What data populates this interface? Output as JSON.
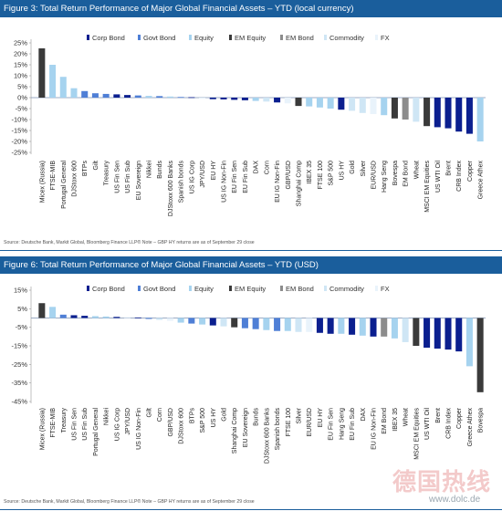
{
  "colors": {
    "title_bar": "#1a5e9c",
    "Corp Bond": "#0b1f8f",
    "Govt Bond": "#4f7fd6",
    "Equity": "#a6d3ef",
    "EM Equity": "#3a3a3a",
    "EM Bond": "#8c8c8c",
    "Commodity": "#cfe6f5",
    "FX": "#e9f3fb"
  },
  "chart_data": [
    {
      "type": "bar",
      "title": "Figure 3: Total Return Performance of Major Global Financial Assets – YTD (local currency)",
      "source": "Source: Deutsche Bank, Markit Global, Bloomberg Finance LLP® Note – GBP HY returns are as of September 29 close",
      "yticks": [
        "25%",
        "20%",
        "15%",
        "10%",
        "5%",
        "0%",
        "-5%",
        "-10%",
        "-15%",
        "-20%",
        "-25%"
      ],
      "ylim": [
        -25,
        25
      ],
      "legend_labels": [
        "Corp Bond",
        "Govt Bond",
        "Equity",
        "EM Equity",
        "EM Bond",
        "Commodity",
        "FX"
      ],
      "legend_position": "top",
      "grid": false,
      "categories": [
        "Micex (Russia)",
        "FTSE-MIB",
        "Portugal General",
        "DJStoxx 600",
        "BTPs",
        "Gilt",
        "Treasury",
        "US Fin Sen",
        "US Fin Sub",
        "EU Sovereign",
        "Nikkei",
        "Bunds",
        "DJStoxx 600 Banks",
        "Spanish bonds",
        "US IG Corp",
        "JPY/USD",
        "EU HY",
        "US IG Non-Fin",
        "EU Fin Sen",
        "EU Fin Sub",
        "DAX",
        "Corn",
        "EU IG Non-Fin",
        "GBP/USD",
        "Shanghai Comp",
        "IBEX 35",
        "FTSE 100",
        "S&P 500",
        "US HY",
        "Gold",
        "Silver",
        "EUR/USD",
        "Hang Seng",
        "Bovespa",
        "EM Bond",
        "Wheat",
        "MSCI EM Equities",
        "US WTI Oil",
        "Brent",
        "CRB Index",
        "Copper",
        "Greece Athex"
      ],
      "values": [
        22.5,
        15,
        9.5,
        4.3,
        3,
        2,
        1.7,
        1.5,
        1.2,
        1,
        0.8,
        0.7,
        0.5,
        0.3,
        0.2,
        -0.5,
        -0.7,
        -0.8,
        -1,
        -1.2,
        -1.5,
        -1.8,
        -2.2,
        -2.6,
        -3.8,
        -4,
        -4.5,
        -5,
        -5.5,
        -6,
        -7,
        -7.5,
        -8,
        -9.5,
        -10,
        -11,
        -13,
        -13.5,
        -14,
        -15.5,
        -16.5,
        -20
      ],
      "categories_class": [
        "EM Equity",
        "Equity",
        "Equity",
        "Equity",
        "Govt Bond",
        "Govt Bond",
        "Govt Bond",
        "Corp Bond",
        "Corp Bond",
        "Govt Bond",
        "Equity",
        "Govt Bond",
        "Equity",
        "Govt Bond",
        "Corp Bond",
        "FX",
        "Corp Bond",
        "Corp Bond",
        "Corp Bond",
        "Corp Bond",
        "Equity",
        "Commodity",
        "Corp Bond",
        "FX",
        "EM Equity",
        "Equity",
        "Equity",
        "Equity",
        "Corp Bond",
        "Commodity",
        "Commodity",
        "FX",
        "Equity",
        "EM Equity",
        "EM Bond",
        "Commodity",
        "EM Equity",
        "Corp Bond",
        "Corp Bond",
        "Corp Bond",
        "Corp Bond",
        "Equity"
      ]
    },
    {
      "type": "bar",
      "title": "Figure 6: Total Return Performance of Major Global Financial Assets – YTD (USD)",
      "source": "Source: Deutsche Bank, Markit Global, Bloomberg Finance LLP® Note – GBP HY returns are as of September 29 close",
      "yticks": [
        "15%",
        "5%",
        "-5%",
        "-15%",
        "-25%",
        "-35%",
        "-45%"
      ],
      "ylim": [
        -45,
        15
      ],
      "legend_labels": [
        "Corp Bond",
        "Govt Bond",
        "Equity",
        "EM Equity",
        "EM Bond",
        "Commodity",
        "FX"
      ],
      "legend_position": "top",
      "grid": false,
      "categories": [
        "Micex (Russia)",
        "FTSE-MIB",
        "Treasury",
        "US Fin Sen",
        "US Fin Sub",
        "Portugal General",
        "Nikkei",
        "US IG Corp",
        "JPY/USD",
        "US IG Non-Fin",
        "Gilt",
        "Corn",
        "GBP/USD",
        "DJStoxx 600",
        "BTPs",
        "S&P 500",
        "US HY",
        "Gold",
        "Shanghai Comp",
        "EU Sovereign",
        "Bunds",
        "DJStoxx 600 Banks",
        "Spanish bonds",
        "FTSE 100",
        "Silver",
        "EUR/USD",
        "EU HY",
        "EU Fin Sen",
        "Hang Seng",
        "EU Fin Sub",
        "DAX",
        "EU IG Non-Fin",
        "EM Bond",
        "IBEX 35",
        "Wheat",
        "MSCI EM Equities",
        "US WTI Oil",
        "Brent",
        "CRB Index",
        "Copper",
        "Greece Athex",
        "Bovespa"
      ],
      "values": [
        8,
        6,
        1.8,
        1.5,
        1.2,
        1,
        0.8,
        0.6,
        0.5,
        0.3,
        -0.5,
        -1,
        -1.5,
        -2.5,
        -3,
        -3.5,
        -4,
        -4.5,
        -5,
        -5.5,
        -6,
        -6.5,
        -7,
        -7,
        -7.5,
        -7.5,
        -8,
        -8.5,
        -8.5,
        -9,
        -9.5,
        -10,
        -10,
        -11,
        -13,
        -15,
        -16,
        -16.5,
        -17,
        -18,
        -26,
        -40
      ],
      "categories_class": [
        "EM Equity",
        "Equity",
        "Govt Bond",
        "Corp Bond",
        "Corp Bond",
        "Equity",
        "Equity",
        "Corp Bond",
        "FX",
        "Corp Bond",
        "Govt Bond",
        "Commodity",
        "FX",
        "Equity",
        "Govt Bond",
        "Equity",
        "Corp Bond",
        "Commodity",
        "EM Equity",
        "Govt Bond",
        "Govt Bond",
        "Equity",
        "Govt Bond",
        "Equity",
        "Commodity",
        "FX",
        "Corp Bond",
        "Corp Bond",
        "Equity",
        "Corp Bond",
        "Equity",
        "Corp Bond",
        "EM Bond",
        "Equity",
        "Commodity",
        "EM Equity",
        "Corp Bond",
        "Corp Bond",
        "Corp Bond",
        "Corp Bond",
        "Equity",
        "EM Equity"
      ]
    }
  ],
  "watermark": {
    "text": "德国热线",
    "url": "www.dolc.de"
  }
}
